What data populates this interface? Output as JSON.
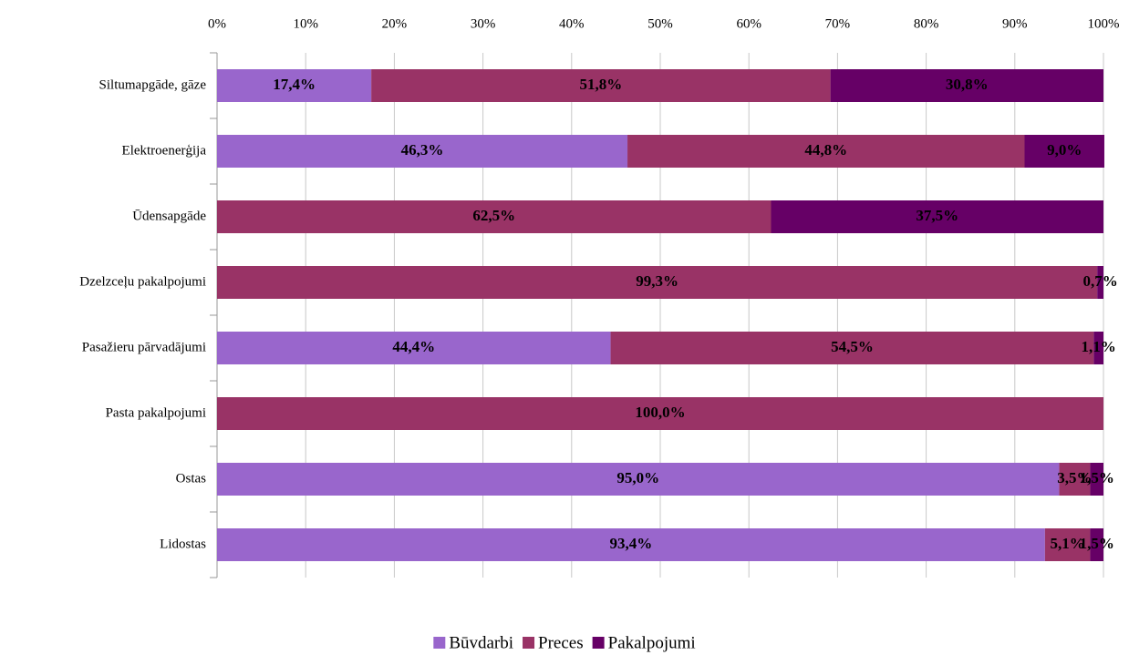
{
  "chart_data": {
    "type": "stacked_barh",
    "categories": [
      "Siltumapgāde, gāze",
      "Elektroenerģija",
      "Ūdensapgāde",
      "Dzelzceļu pakalpojumi",
      "Pasažieru pārvadājumi",
      "Pasta pakalpojumi",
      "Ostas",
      "Lidostas"
    ],
    "series": [
      {
        "name": "Būvdarbi",
        "color": "#9966cc",
        "values": [
          17.4,
          46.3,
          0,
          0,
          44.4,
          0,
          95.0,
          93.4
        ],
        "value_labels": [
          "17,4%",
          "46,3%",
          null,
          null,
          "44,4%",
          null,
          "95,0%",
          "93,4%"
        ]
      },
      {
        "name": "Preces",
        "color": "#993366",
        "values": [
          51.8,
          44.8,
          62.5,
          99.3,
          54.5,
          100.0,
          3.5,
          5.1
        ],
        "value_labels": [
          "51,8%",
          "44,8%",
          "62,5%",
          "99,3%",
          "54,5%",
          "100,0%",
          "3,5%",
          "5,1%"
        ]
      },
      {
        "name": "Pakalpojumi",
        "color": "#660066",
        "values": [
          30.8,
          9.0,
          37.5,
          0.7,
          1.1,
          0,
          1.5,
          1.5
        ],
        "value_labels": [
          "30,8%",
          "9,0%",
          "37,5%",
          "0,7%",
          "1,1%",
          null,
          "1,5%",
          "1,5%"
        ]
      }
    ],
    "xlim": [
      0,
      100
    ],
    "xticks": [
      {
        "value": 0,
        "label": "0%"
      },
      {
        "value": 10,
        "label": "10%"
      },
      {
        "value": 20,
        "label": "20%"
      },
      {
        "value": 30,
        "label": "30%"
      },
      {
        "value": 40,
        "label": "40%"
      },
      {
        "value": 50,
        "label": "50%"
      },
      {
        "value": 60,
        "label": "60%"
      },
      {
        "value": 70,
        "label": "70%"
      },
      {
        "value": 80,
        "label": "80%"
      },
      {
        "value": 90,
        "label": "90%"
      },
      {
        "value": 100,
        "label": "100%"
      }
    ],
    "grid": true,
    "legend": "bottom"
  }
}
